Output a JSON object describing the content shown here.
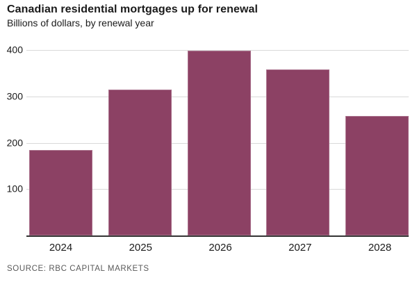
{
  "header": {
    "title": "Canadian residential mortgages up for renewal",
    "subtitle": "Billions of dollars, by renewal year"
  },
  "footer": {
    "source": "SOURCE: RBC CAPITAL MARKETS"
  },
  "colors": {
    "bar": "#8c4164",
    "gridline": "#d9d9d9",
    "axis": "#333333",
    "text": "#1a1a1a",
    "source_text": "#595959",
    "background": "#ffffff"
  },
  "chart_data": {
    "type": "bar",
    "title": "Canadian residential mortgages up for renewal",
    "subtitle": "Billions of dollars, by renewal year",
    "categories": [
      "2024",
      "2025",
      "2026",
      "2027",
      "2028"
    ],
    "values": [
      185,
      314,
      398,
      358,
      257
    ],
    "xlabel": "",
    "ylabel": "Billions of dollars",
    "ylim": [
      0,
      400
    ],
    "yticks": [
      100,
      200,
      300,
      400
    ],
    "grid": true,
    "legend": false,
    "bar_color": "#8c4164",
    "source": "SOURCE: RBC CAPITAL MARKETS"
  }
}
